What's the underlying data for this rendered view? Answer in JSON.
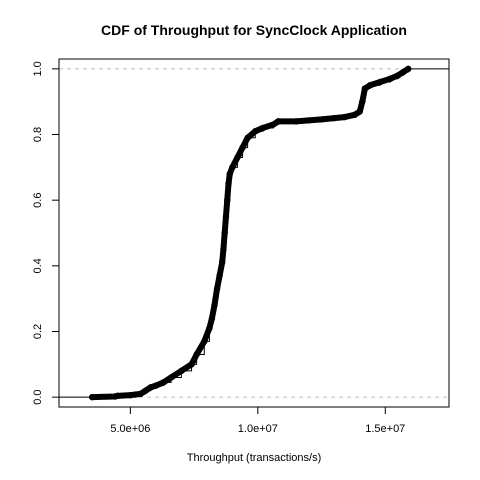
{
  "chart_data": {
    "type": "scatter",
    "title": "CDF of Throughput for SyncClock Application",
    "xlabel": "Throughput (transactions/s)",
    "ylabel": "",
    "xlim": [
      2200000,
      17500000
    ],
    "ylim": [
      -0.03,
      1.03
    ],
    "x_ticks": [
      5000000,
      10000000,
      15000000
    ],
    "x_tick_labels": [
      "5.0e+06",
      "1.0e+07",
      "1.5e+07"
    ],
    "y_ticks": [
      0.0,
      0.2,
      0.4,
      0.6,
      0.8,
      1.0
    ],
    "y_tick_labels": [
      "0.0",
      "0.2",
      "0.4",
      "0.6",
      "0.8",
      "1.0"
    ],
    "reference_lines_y": [
      0,
      1
    ],
    "grid": false,
    "legend": "none",
    "colors": {
      "points": "#000000",
      "reference_lines": "#bebebe",
      "step_line": "#000000"
    },
    "series": [
      {
        "points": [
          [
            3500000,
            0.0
          ],
          [
            4400000,
            0.002
          ],
          [
            4500000,
            0.004
          ],
          [
            5000000,
            0.006
          ],
          [
            5200000,
            0.008
          ],
          [
            5400000,
            0.01
          ],
          [
            5600000,
            0.02
          ],
          [
            5800000,
            0.03
          ],
          [
            6000000,
            0.035
          ],
          [
            6300000,
            0.045
          ],
          [
            6600000,
            0.06
          ],
          [
            7000000,
            0.08
          ],
          [
            7400000,
            0.1
          ],
          [
            7600000,
            0.13
          ],
          [
            7900000,
            0.17
          ],
          [
            8100000,
            0.21
          ],
          [
            8200000,
            0.24
          ],
          [
            8300000,
            0.28
          ],
          [
            8400000,
            0.33
          ],
          [
            8500000,
            0.37
          ],
          [
            8600000,
            0.41
          ],
          [
            8650000,
            0.45
          ],
          [
            8700000,
            0.5
          ],
          [
            8750000,
            0.55
          ],
          [
            8800000,
            0.6
          ],
          [
            8850000,
            0.65
          ],
          [
            8900000,
            0.68
          ],
          [
            9000000,
            0.7
          ],
          [
            9200000,
            0.73
          ],
          [
            9400000,
            0.76
          ],
          [
            9600000,
            0.79
          ],
          [
            9900000,
            0.81
          ],
          [
            10200000,
            0.82
          ],
          [
            10600000,
            0.83
          ],
          [
            10800000,
            0.84
          ],
          [
            11500000,
            0.84
          ],
          [
            12000000,
            0.843
          ],
          [
            12500000,
            0.846
          ],
          [
            13000000,
            0.85
          ],
          [
            13400000,
            0.853
          ],
          [
            13800000,
            0.86
          ],
          [
            14000000,
            0.87
          ],
          [
            14100000,
            0.9
          ],
          [
            14200000,
            0.94
          ],
          [
            14400000,
            0.95
          ],
          [
            14800000,
            0.96
          ],
          [
            15200000,
            0.97
          ],
          [
            15500000,
            0.98
          ],
          [
            15700000,
            0.99
          ],
          [
            15900000,
            1.0
          ]
        ]
      }
    ]
  }
}
